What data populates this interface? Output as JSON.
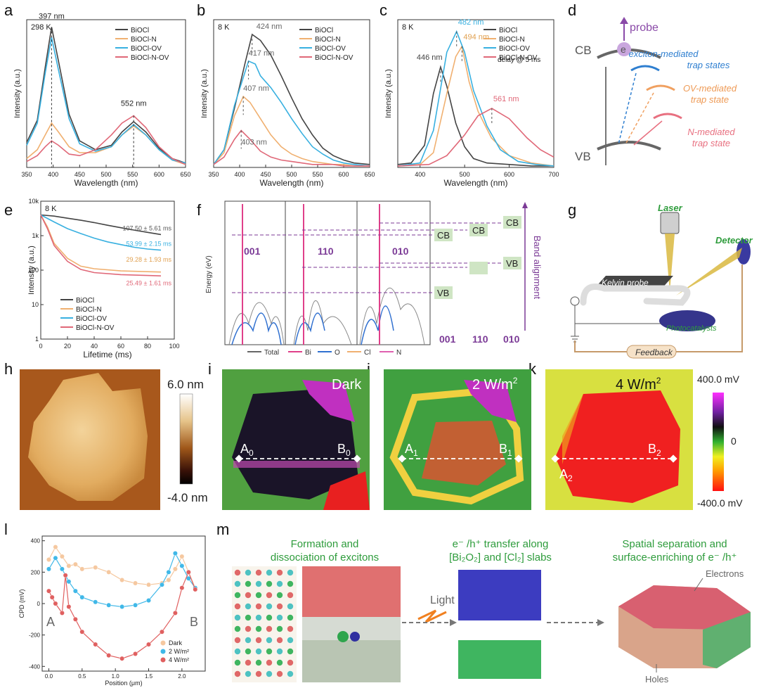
{
  "panel_labels": [
    "a",
    "b",
    "c",
    "d",
    "e",
    "f",
    "g",
    "h",
    "i",
    "j",
    "k",
    "l",
    "m"
  ],
  "legend_series": [
    "BiOCl",
    "BiOCl-N",
    "BiOCl-OV",
    "BiOCl-N-OV"
  ],
  "colors": {
    "BiOCl": "#444444",
    "BiOCl-N": "#f0b070",
    "BiOCl-OV": "#38b0e0",
    "BiOCl-N-OV": "#e06878",
    "purple": "#7b3a96",
    "Bi": "#e0408a",
    "O": "#3070d0",
    "Cl": "#f0b070",
    "N": "#e060b0",
    "Total": "#666666"
  },
  "chart_data": [
    {
      "panel": "a",
      "type": "line",
      "condition": "298 K",
      "xlabel": "Wavelength (nm)",
      "ylabel": "Intensity (a.u.)",
      "xlim": [
        350,
        650
      ],
      "xticks": [
        350,
        400,
        450,
        500,
        550,
        600,
        650
      ],
      "annotations": [
        "397 nm",
        "552 nm"
      ],
      "series": [
        {
          "name": "BiOCl",
          "x": [
            350,
            370,
            385,
            397,
            410,
            430,
            450,
            480,
            510,
            530,
            552,
            575,
            600,
            625,
            650
          ],
          "y": [
            0.17,
            0.32,
            0.68,
            0.95,
            0.72,
            0.36,
            0.18,
            0.12,
            0.15,
            0.24,
            0.31,
            0.24,
            0.13,
            0.06,
            0.03
          ]
        },
        {
          "name": "BiOCl-N",
          "x": [
            350,
            370,
            385,
            397,
            410,
            430,
            450,
            480,
            510,
            530,
            552,
            575,
            600,
            625,
            650
          ],
          "y": [
            0.06,
            0.12,
            0.22,
            0.3,
            0.24,
            0.14,
            0.1,
            0.1,
            0.14,
            0.22,
            0.28,
            0.22,
            0.12,
            0.05,
            0.02
          ]
        },
        {
          "name": "BiOCl-OV",
          "x": [
            350,
            370,
            385,
            397,
            410,
            430,
            450,
            480,
            510,
            530,
            552,
            575,
            600,
            625,
            650
          ],
          "y": [
            0.15,
            0.3,
            0.64,
            0.88,
            0.66,
            0.33,
            0.16,
            0.11,
            0.14,
            0.22,
            0.29,
            0.22,
            0.12,
            0.05,
            0.03
          ]
        },
        {
          "name": "BiOCl-N-OV",
          "x": [
            350,
            370,
            385,
            397,
            410,
            430,
            450,
            480,
            510,
            530,
            552,
            575,
            600,
            625,
            650
          ],
          "y": [
            0.04,
            0.08,
            0.14,
            0.18,
            0.15,
            0.09,
            0.08,
            0.12,
            0.22,
            0.3,
            0.35,
            0.27,
            0.14,
            0.06,
            0.02
          ]
        }
      ]
    },
    {
      "panel": "b",
      "type": "line",
      "condition": "8 K",
      "xlabel": "Wavelength (nm)",
      "ylabel": "Intensity (a.u.)",
      "xlim": [
        350,
        650
      ],
      "xticks": [
        350,
        400,
        450,
        500,
        550,
        600,
        650
      ],
      "annotations": [
        "424 nm",
        "417 nm",
        "407 nm",
        "403 nm"
      ],
      "series": [
        {
          "name": "BiOCl",
          "x": [
            350,
            370,
            390,
            410,
            424,
            440,
            460,
            480,
            500,
            520,
            540,
            560,
            580,
            600,
            620,
            650
          ],
          "y": [
            0.02,
            0.12,
            0.4,
            0.7,
            0.9,
            0.86,
            0.76,
            0.62,
            0.47,
            0.33,
            0.22,
            0.13,
            0.08,
            0.05,
            0.03,
            0.02
          ]
        },
        {
          "name": "BiOCl-N",
          "x": [
            350,
            370,
            390,
            407,
            420,
            440,
            460,
            480,
            500,
            520,
            540,
            560,
            580,
            600,
            620,
            650
          ],
          "y": [
            0.02,
            0.1,
            0.35,
            0.48,
            0.44,
            0.33,
            0.22,
            0.14,
            0.09,
            0.06,
            0.04,
            0.03,
            0.02,
            0.02,
            0.01,
            0.01
          ]
        },
        {
          "name": "BiOCl-OV",
          "x": [
            350,
            370,
            390,
            417,
            430,
            440,
            460,
            480,
            500,
            520,
            540,
            560,
            580,
            600,
            620,
            650
          ],
          "y": [
            0.02,
            0.12,
            0.42,
            0.72,
            0.7,
            0.62,
            0.54,
            0.44,
            0.33,
            0.23,
            0.14,
            0.09,
            0.05,
            0.03,
            0.02,
            0.01
          ]
        },
        {
          "name": "BiOCl-N-OV",
          "x": [
            350,
            370,
            390,
            403,
            420,
            440,
            460,
            480,
            500,
            520,
            540,
            560,
            580,
            600,
            620,
            650
          ],
          "y": [
            0.02,
            0.07,
            0.19,
            0.25,
            0.19,
            0.11,
            0.07,
            0.05,
            0.04,
            0.03,
            0.02,
            0.02,
            0.02,
            0.01,
            0.01,
            0.01
          ]
        }
      ]
    },
    {
      "panel": "c",
      "type": "line",
      "condition": "8 K",
      "note": "delay @ 5 ms",
      "xlabel": "Wavelength (nm)",
      "ylabel": "Intensity (a.u.)",
      "xlim": [
        350,
        700
      ],
      "xticks": [
        400,
        500,
        600,
        700
      ],
      "annotations": [
        "446 nm",
        "482 nm",
        "494 nm",
        "561 nm"
      ],
      "series": [
        {
          "name": "BiOCl",
          "x": [
            350,
            380,
            410,
            430,
            446,
            460,
            480,
            500,
            520,
            550,
            600,
            650,
            700
          ],
          "y": [
            0.02,
            0.03,
            0.15,
            0.5,
            0.68,
            0.55,
            0.3,
            0.14,
            0.06,
            0.03,
            0.02,
            0.01,
            0.01
          ]
        },
        {
          "name": "BiOCl-N",
          "x": [
            350,
            400,
            430,
            460,
            480,
            494,
            510,
            530,
            560,
            600,
            650,
            700
          ],
          "y": [
            0.01,
            0.02,
            0.1,
            0.5,
            0.75,
            0.82,
            0.58,
            0.38,
            0.2,
            0.08,
            0.03,
            0.01
          ]
        },
        {
          "name": "BiOCl-OV",
          "x": [
            350,
            400,
            430,
            460,
            482,
            500,
            520,
            550,
            580,
            620,
            660,
            700
          ],
          "y": [
            0.01,
            0.03,
            0.25,
            0.78,
            0.92,
            0.78,
            0.52,
            0.28,
            0.12,
            0.04,
            0.02,
            0.01
          ]
        },
        {
          "name": "BiOCl-N-OV",
          "x": [
            350,
            420,
            460,
            500,
            530,
            561,
            600,
            640,
            670,
            700
          ],
          "y": [
            0.01,
            0.02,
            0.08,
            0.22,
            0.35,
            0.4,
            0.33,
            0.2,
            0.12,
            0.07
          ]
        }
      ]
    },
    {
      "panel": "e",
      "type": "line",
      "condition": "8 K",
      "yscale": "log",
      "xlabel": "Lifetime (ms)",
      "ylabel": "Intensity (a.u.)",
      "xlim": [
        0,
        100
      ],
      "xticks": [
        0,
        20,
        40,
        60,
        80,
        100
      ],
      "ylim": [
        1,
        10000
      ],
      "yticks": [
        "1",
        "10",
        "100",
        "1k",
        "10k"
      ],
      "series": [
        {
          "name": "BiOCl",
          "lifetime": "107.50 ± 5.61 ms",
          "x": [
            0,
            10,
            20,
            30,
            40,
            50,
            60,
            70,
            80,
            90
          ],
          "y": [
            4000,
            3700,
            3200,
            2800,
            2400,
            2000,
            1700,
            1450,
            1250,
            1080
          ]
        },
        {
          "name": "BiOCl-N",
          "lifetime": "29.28 ± 1.93 ms",
          "x": [
            0,
            5,
            10,
            20,
            30,
            40,
            60,
            80,
            90
          ],
          "y": [
            4000,
            1800,
            600,
            220,
            130,
            110,
            95,
            90,
            88
          ]
        },
        {
          "name": "BiOCl-OV",
          "lifetime": "53.99 ± 2.15 ms",
          "x": [
            0,
            10,
            20,
            30,
            40,
            50,
            60,
            70,
            80,
            90
          ],
          "y": [
            4000,
            2500,
            1600,
            1150,
            850,
            660,
            550,
            460,
            410,
            380
          ]
        },
        {
          "name": "BiOCl-N-OV",
          "lifetime": "25.49 ± 1.61 ms",
          "x": [
            0,
            5,
            10,
            20,
            30,
            40,
            60,
            80,
            90
          ],
          "y": [
            4000,
            1600,
            520,
            180,
            105,
            85,
            74,
            70,
            68
          ]
        }
      ]
    },
    {
      "panel": "l",
      "type": "scatter",
      "xlabel": "Position (μm)",
      "ylabel": "CPD (mV)",
      "xlim": [
        -0.1,
        2.35
      ],
      "xticks": [
        0.0,
        0.5,
        1.0,
        1.5,
        2.0
      ],
      "ylim": [
        -430,
        430
      ],
      "yticks": [
        -400,
        -200,
        0,
        200,
        400
      ],
      "end_labels": [
        "A",
        "B"
      ],
      "series": [
        {
          "name": "Dark",
          "color": "#f5c8a0",
          "x": [
            0.0,
            0.1,
            0.2,
            0.3,
            0.4,
            0.5,
            0.7,
            0.9,
            1.1,
            1.3,
            1.5,
            1.7,
            1.8,
            1.9,
            2.0,
            2.1,
            2.2
          ],
          "y": [
            280,
            360,
            300,
            240,
            250,
            220,
            230,
            200,
            150,
            130,
            120,
            130,
            150,
            220,
            300,
            200,
            100
          ]
        },
        {
          "name": "2 W/m²",
          "color": "#40b8e8",
          "x": [
            0.0,
            0.1,
            0.2,
            0.3,
            0.4,
            0.5,
            0.7,
            0.9,
            1.1,
            1.3,
            1.5,
            1.7,
            1.8,
            1.9,
            2.0,
            2.1,
            2.2
          ],
          "y": [
            220,
            290,
            220,
            140,
            80,
            40,
            10,
            -10,
            -20,
            -10,
            20,
            120,
            200,
            320,
            240,
            160,
            100
          ]
        },
        {
          "name": "4 W/m²",
          "color": "#e06060",
          "x": [
            0.0,
            0.05,
            0.1,
            0.2,
            0.25,
            0.3,
            0.4,
            0.5,
            0.7,
            0.9,
            1.1,
            1.3,
            1.5,
            1.7,
            1.9,
            2.0,
            2.1,
            2.2
          ],
          "y": [
            80,
            40,
            0,
            -60,
            180,
            -20,
            -100,
            -180,
            -260,
            -330,
            -350,
            -320,
            -260,
            -180,
            -60,
            100,
            200,
            90
          ]
        }
      ]
    }
  ],
  "panel_d": {
    "cb": "CB",
    "vb": "VB",
    "probe": "probe",
    "electron": "e",
    "trap1": [
      "exciton-mediated",
      "trap states"
    ],
    "trap2": [
      "OV-mediated",
      "trap state"
    ],
    "trap3": [
      "N-mediated",
      "trap state"
    ]
  },
  "panel_f": {
    "ylabel": "Energy (eV)",
    "facets": [
      "001",
      "110",
      "010"
    ],
    "band_labels": [
      "CB",
      "CB",
      "CB",
      "VB",
      "VB"
    ],
    "axis_title": "Band alignment",
    "legend": [
      "Total",
      "Bi",
      "O",
      "Cl",
      "N"
    ]
  },
  "panel_g": {
    "laser": "Laser",
    "detector": "Detector",
    "kelvin": "Kelvin probe",
    "photocatalysts": "Photocatalysts",
    "feedback": "Feedback"
  },
  "panel_h": {
    "top": "6.0 nm",
    "bottom": "-4.0 nm"
  },
  "panel_i": {
    "title": "Dark",
    "a": "A",
    "b": "B",
    "sub": "0"
  },
  "panel_j": {
    "title": "2 W/m",
    "sup": "2",
    "a": "A",
    "b": "B",
    "sub": "1"
  },
  "panel_k": {
    "title": "4 W/m",
    "sup": "2",
    "a": "A",
    "b": "B",
    "sub": "2",
    "cbar_top": "400.0 mV",
    "cbar_mid": "0",
    "cbar_bottom": "-400.0 mV"
  },
  "panel_m": {
    "title1": [
      "Formation and",
      "dissociation of excitons"
    ],
    "light": "Light",
    "title2a": "e⁻ /h⁺ transfer along",
    "title2b": "[Bi₂O₂] and [Cl₂] slabs",
    "title3": [
      "Spatial separation and",
      "surface-enriching of e⁻ /h⁺"
    ],
    "electrons": "Electrons",
    "holes": "Holes"
  }
}
